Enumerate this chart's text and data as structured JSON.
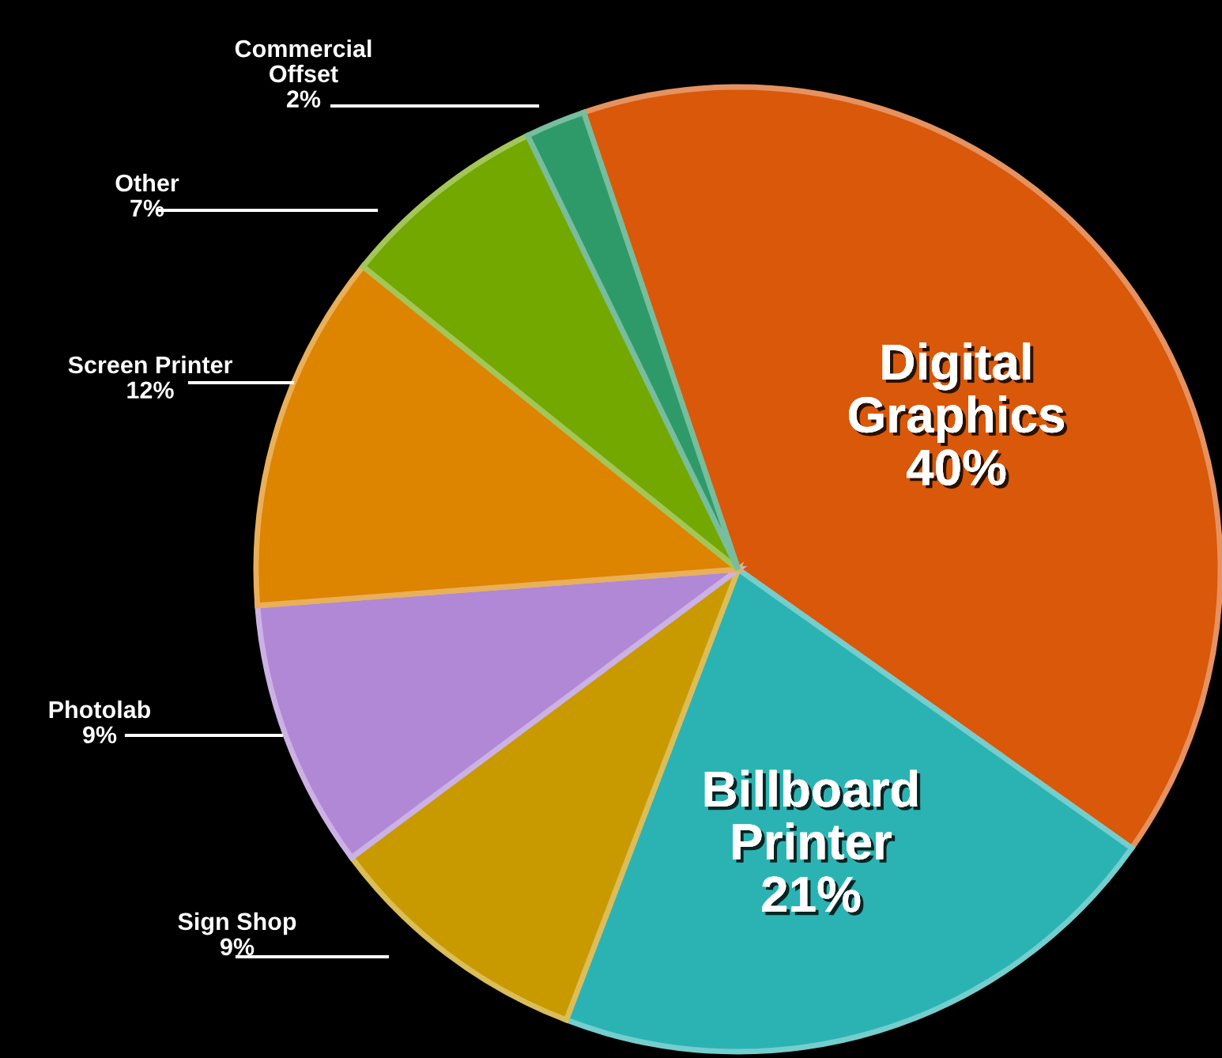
{
  "chart_data": {
    "type": "pie",
    "categories": [
      "Digital Graphics",
      "Billboard Printer",
      "Sign Shop",
      "Photolab",
      "Screen Printer",
      "Other",
      "Commercial Offset"
    ],
    "values": [
      40,
      21,
      9,
      9,
      12,
      7,
      2
    ],
    "value_labels": [
      "40%",
      "21%",
      "9%",
      "9%",
      "12%",
      "7%",
      "2%"
    ],
    "colors": [
      "#d9580a",
      "#2bb3b3",
      "#c89a00",
      "#b088d6",
      "#dd8400",
      "#72a800",
      "#2e9a6a"
    ],
    "legend": false
  }
}
